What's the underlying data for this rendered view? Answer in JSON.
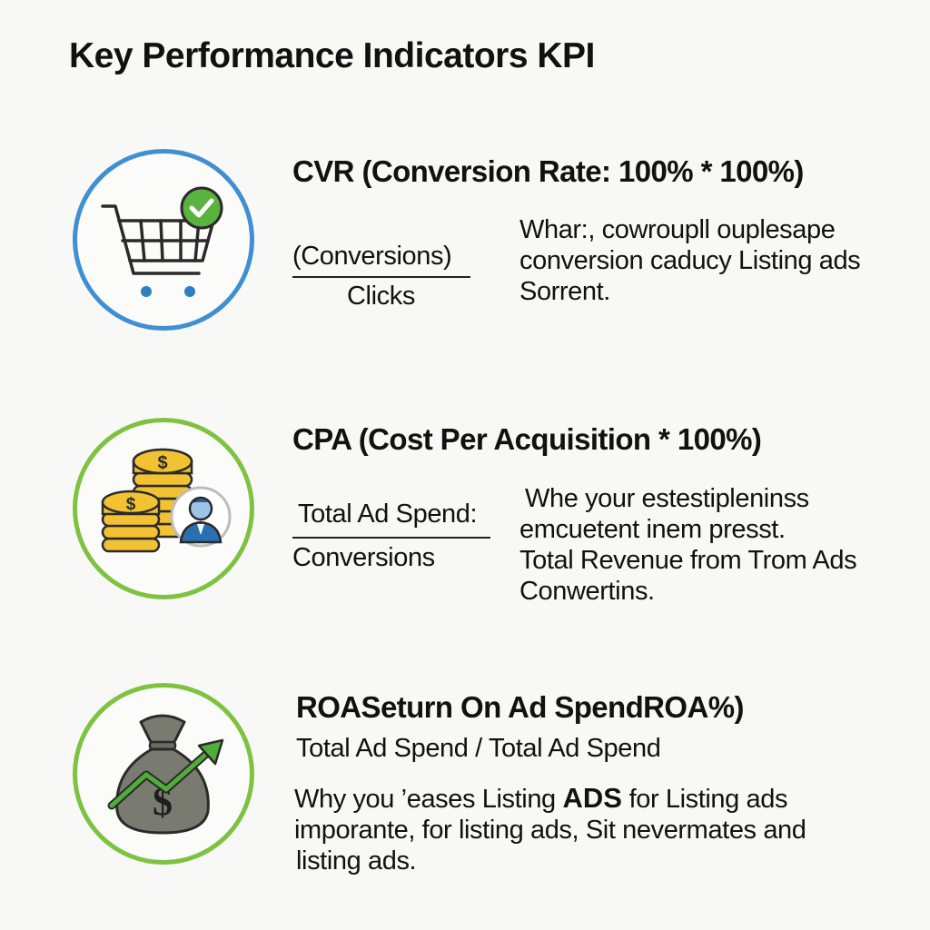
{
  "title": "Key Performance Indicators KPI",
  "colors": {
    "blue_ring": "#3f8fd2",
    "green_ring": "#7ec242",
    "check_green": "#59b33f",
    "coin_gold": "#f2c233",
    "bag_gray": "#7a7b70",
    "arrow_green": "#4fae3a"
  },
  "kpis": [
    {
      "heading": "CVR (Conversion Rate:  100% * 100%)",
      "icon": "shopping-cart-check-icon",
      "numerator": "(Conversions)",
      "denominator": "Clicks",
      "description": [
        "Whar:, cowroupll ouplesape",
        "conversion caducy Listing ads",
        "Sorrent."
      ]
    },
    {
      "heading": "CPA (Cost Per Acquisition * 100%)",
      "icon": "coins-person-icon",
      "numerator": "Total Ad Spend:",
      "denominator": "Conversions",
      "description": [
        "Whe your estestipleninss",
        "emcuetent inem presst.",
        "Total Revenue from Trom Ads",
        "Conwertins."
      ]
    },
    {
      "heading": "ROASeturn On Ad SpendROA%)",
      "icon": "money-bag-growth-icon",
      "formula": "Total Ad Spend / Total Ad Spend",
      "description_line1_pre": "Why you ’eases Listing ",
      "description_line1_bold": "ADS",
      "description_line1_post": " for Listing ads",
      "description_rest": [
        "imporante, for listing ads, Sit nevermates and",
        "listing ads."
      ]
    }
  ]
}
